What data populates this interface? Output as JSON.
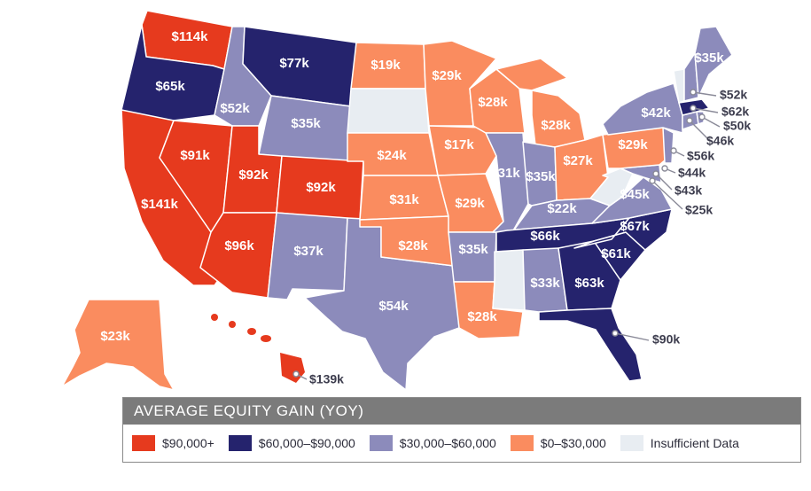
{
  "colors": {
    "tier1": "#e63a1e",
    "tier2": "#25236d",
    "tier3": "#8c8bbb",
    "tier4": "#fa8c5f",
    "none": "#e8edf2"
  },
  "legend": {
    "title": "AVERAGE EQUITY GAIN (YOY)",
    "items": [
      {
        "label": "$90,000+",
        "color": "#e63a1e"
      },
      {
        "label": "$60,000–$90,000",
        "color": "#25236d"
      },
      {
        "label": "$30,000–$60,000",
        "color": "#8c8bbb"
      },
      {
        "label": "$0–$30,000",
        "color": "#fa8c5f"
      },
      {
        "label": "Insufficient Data",
        "color": "#e8edf2"
      }
    ]
  },
  "states": {
    "WA": "$114k",
    "OR": "$65k",
    "CA": "$141k",
    "NV": "$91k",
    "ID": "$52k",
    "MT": "$77k",
    "WY": "$35k",
    "UT": "$92k",
    "CO": "$92k",
    "AZ": "$96k",
    "NM": "$37k",
    "TX": "$54k",
    "ND": "$19k",
    "SD": "",
    "NE": "$24k",
    "KS": "$31k",
    "OK": "$28k",
    "MN": "$29k",
    "IA": "$17k",
    "MO": "$29k",
    "AR": "$35k",
    "LA": "$28k",
    "WI": "$28k",
    "IL": "$31k",
    "MI": "$28k",
    "IN": "$35k",
    "OH": "$27k",
    "KY": "$22k",
    "TN": "$66k",
    "MS": "",
    "AL": "$33k",
    "GA": "$63k",
    "FL": "$90k",
    "SC": "$61k",
    "NC": "$67k",
    "VA": "$45k",
    "WV": "",
    "PA": "$29k",
    "NY": "$42k",
    "ME": "$35k",
    "VT": "",
    "AK": "$23k",
    "HI": "$139k"
  },
  "callouts": {
    "NH": "$52k",
    "MA": "$62k",
    "RI": "$50k",
    "CT": "$46k",
    "NJ": "$56k",
    "DE": "$44k",
    "MD": "$43k",
    "DC": "$25k"
  }
}
